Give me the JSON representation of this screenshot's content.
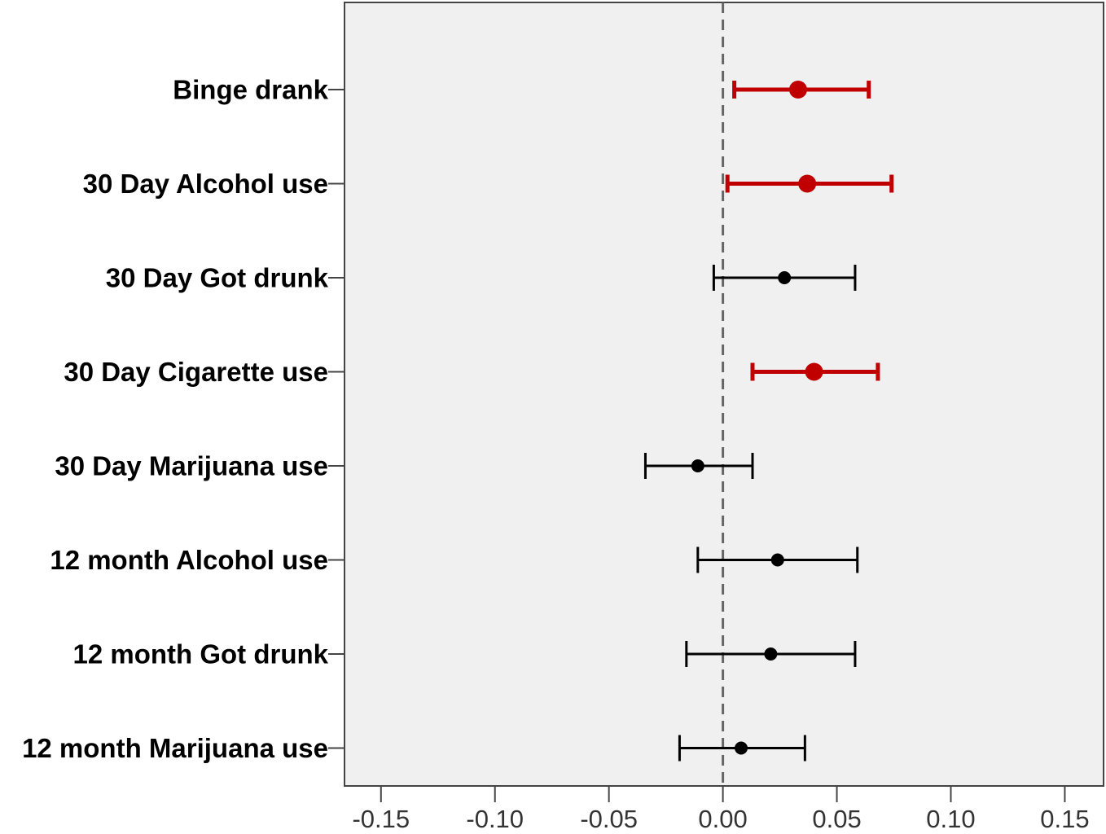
{
  "chart_data": {
    "type": "scatter",
    "subtype": "forest-plot-with-confidence-intervals",
    "orientation": "horizontal",
    "title": "",
    "xlabel": "",
    "ylabel": "",
    "xlim": [
      -0.166,
      0.167
    ],
    "x_ticks": [
      -0.15,
      -0.1,
      -0.05,
      0.0,
      0.05,
      0.1,
      0.15
    ],
    "x_tick_labels": [
      "-0.15",
      "-0.10",
      "-0.05",
      "0.00",
      "0.05",
      "0.10",
      "0.15"
    ],
    "reference_line": {
      "x": 0.0,
      "style": "dashed",
      "color": "#666666"
    },
    "background_color": "#f0f0f0",
    "grid": false,
    "legend": "none",
    "colors": {
      "significant": "#c00000",
      "not_significant": "#000000"
    },
    "categories": [
      "Binge drank",
      "30 Day Alcohol use",
      "30 Day Got drunk",
      "30 Day Cigarette use",
      "30 Day Marijuana use",
      "12 month Alcohol use",
      "12 month Got drunk",
      "12 month Marijuana use"
    ],
    "estimates": [
      0.033,
      0.037,
      0.027,
      0.04,
      -0.011,
      0.024,
      0.021,
      0.008
    ],
    "ci_lower": [
      0.005,
      0.002,
      -0.004,
      0.013,
      -0.034,
      -0.011,
      -0.016,
      -0.019
    ],
    "ci_upper": [
      0.064,
      0.074,
      0.058,
      0.068,
      0.013,
      0.059,
      0.058,
      0.036
    ],
    "significant": [
      true,
      true,
      false,
      true,
      false,
      false,
      false,
      false
    ]
  }
}
